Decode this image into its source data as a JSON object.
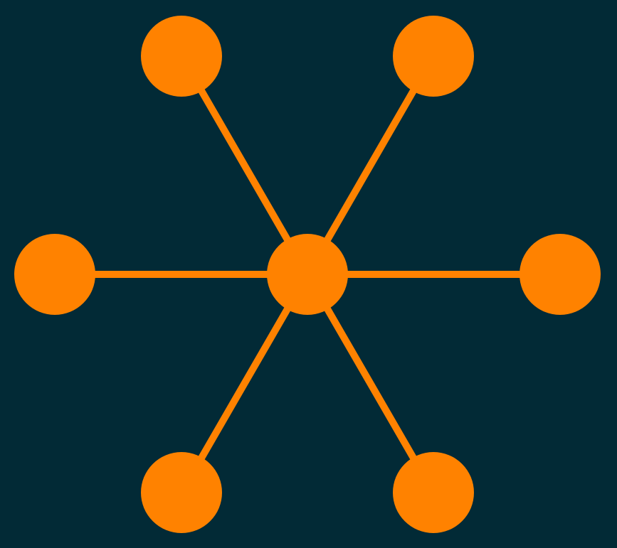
{
  "diagram": {
    "type": "hub-and-spoke",
    "colors": {
      "background": "#022a36",
      "node": "#ff8200",
      "edge": "#ff8200"
    },
    "nodes": [
      {
        "id": "hub"
      },
      {
        "id": "spoke-top-left"
      },
      {
        "id": "spoke-top-right"
      },
      {
        "id": "spoke-left"
      },
      {
        "id": "spoke-right"
      },
      {
        "id": "spoke-bottom-left"
      },
      {
        "id": "spoke-bottom-right"
      }
    ],
    "edges": [
      {
        "from": "hub",
        "to": "spoke-top-left"
      },
      {
        "from": "hub",
        "to": "spoke-top-right"
      },
      {
        "from": "hub",
        "to": "spoke-left"
      },
      {
        "from": "hub",
        "to": "spoke-right"
      },
      {
        "from": "hub",
        "to": "spoke-bottom-left"
      },
      {
        "from": "hub",
        "to": "spoke-bottom-right"
      }
    ]
  }
}
